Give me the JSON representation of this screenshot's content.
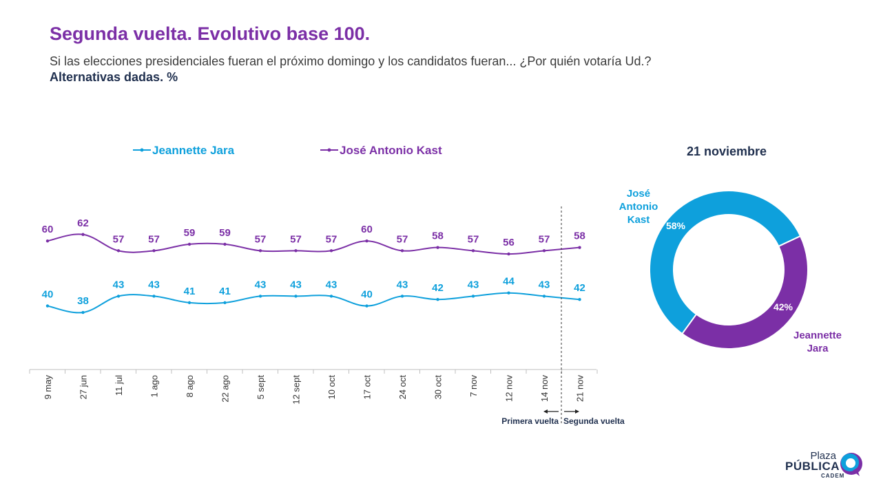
{
  "header": {
    "title": "Segunda vuelta. Evolutivo base 100.",
    "subtitle": "Si las elecciones presidenciales fueran el próximo domingo y los candidatos fueran... ¿Por quién votaría Ud.?",
    "subtitle_bold": "Alternativas dadas. %"
  },
  "chart_data": [
    {
      "type": "line",
      "categories": [
        "9 may",
        "27 jun",
        "11 jul",
        "1 ago",
        "8 ago",
        "22 ago",
        "5 sept",
        "12 sept",
        "10 oct",
        "17 oct",
        "24 oct",
        "30 oct",
        "7 nov",
        "12 nov",
        "14 nov",
        "21 nov"
      ],
      "series": [
        {
          "name": "Jeannette Jara",
          "color": "#0ea0dc",
          "values": [
            40,
            38,
            43,
            43,
            41,
            41,
            43,
            43,
            43,
            40,
            43,
            42,
            43,
            44,
            43,
            42
          ]
        },
        {
          "name": "José Antonio Kast",
          "color": "#7b2fa6",
          "values": [
            60,
            62,
            57,
            57,
            59,
            59,
            57,
            57,
            57,
            60,
            57,
            58,
            57,
            56,
            57,
            58
          ]
        }
      ],
      "legend": "top",
      "grid": false,
      "ylim": [
        15,
        85
      ],
      "annotations": {
        "divider_after": "14 nov",
        "left_label": "Primera vuelta",
        "right_label": "Segunda vuelta"
      }
    },
    {
      "type": "pie",
      "title": "21 noviembre",
      "slices": [
        {
          "label": "José Antonio Kast",
          "label_lines": [
            "José",
            "Antonio",
            "Kast"
          ],
          "value": 58,
          "value_label": "58%",
          "color": "#0ea0dc"
        },
        {
          "label": "Jeannette Jara",
          "label_lines": [
            "Jeannette",
            "Jara"
          ],
          "value": 42,
          "value_label": "42%",
          "color": "#7b2fa6"
        }
      ]
    }
  ],
  "logo": {
    "line1": "Plaza",
    "line2": "PÚBLICA",
    "line3": "CADEM",
    "color": "#1f2f4e"
  }
}
